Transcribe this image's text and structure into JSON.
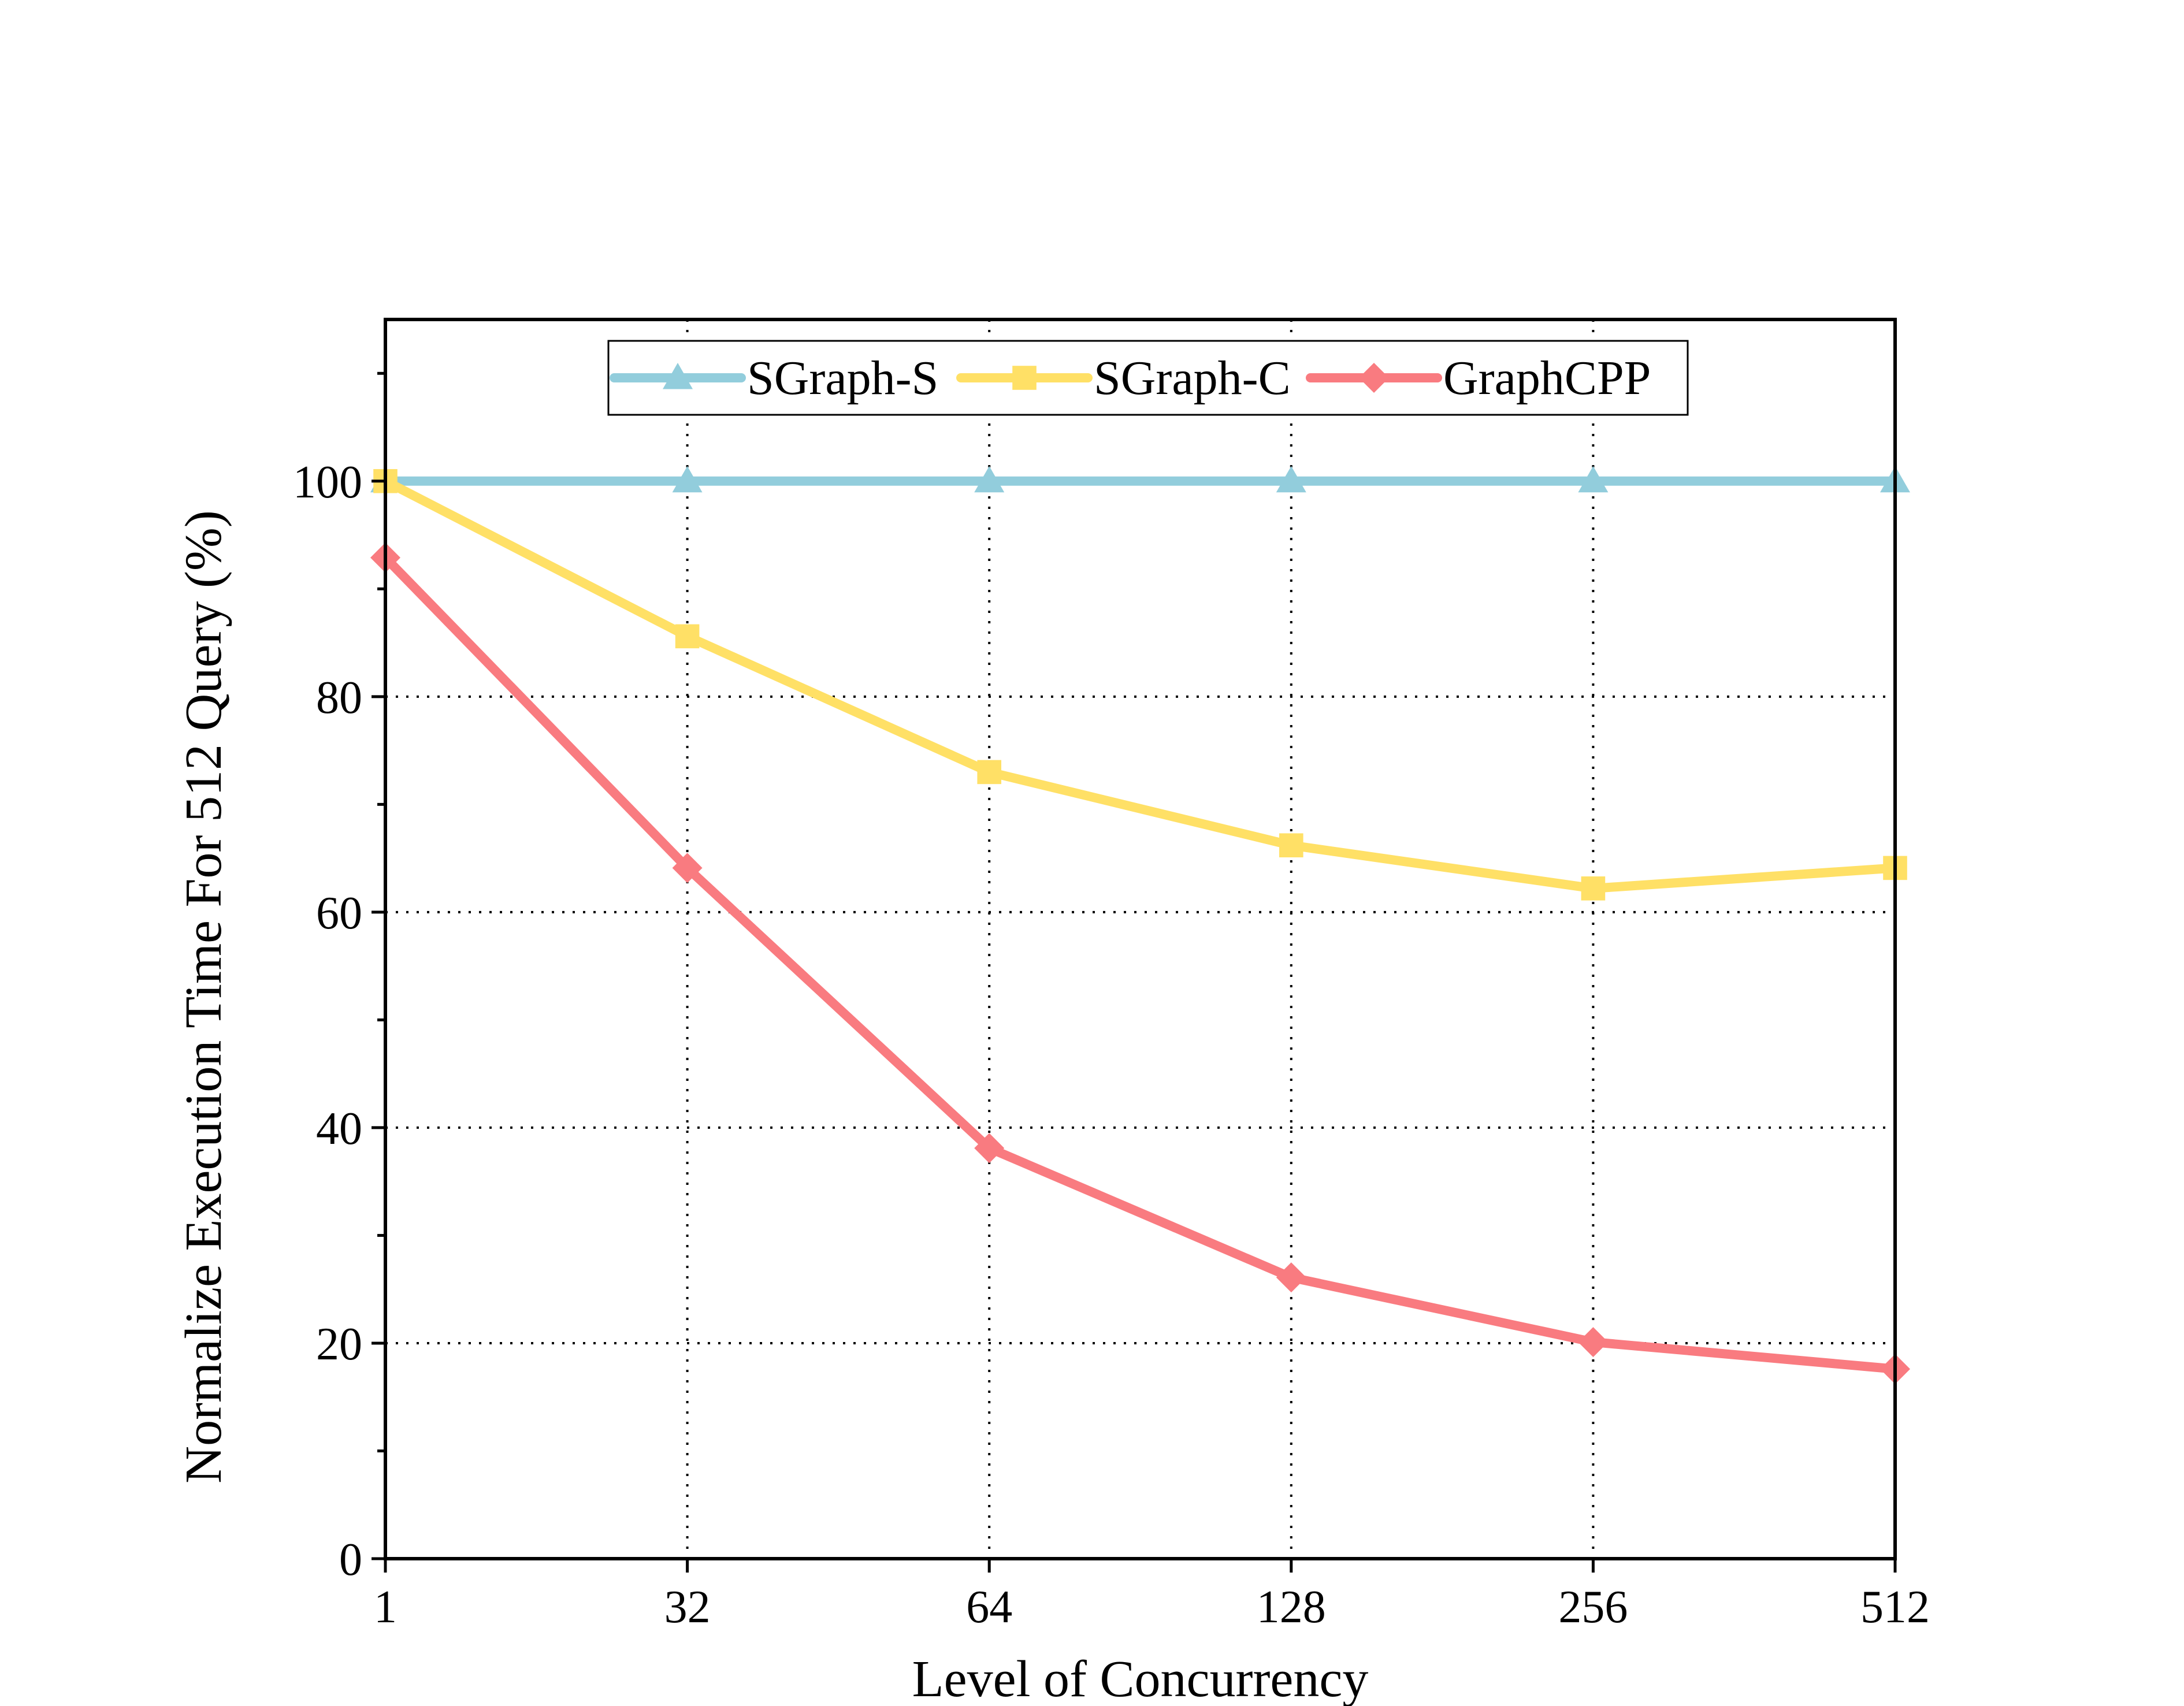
{
  "chart_data": {
    "type": "line",
    "title": "",
    "xlabel": "Level of Concurrency",
    "ylabel": "Normalize Execution Time For 512 Query (%)",
    "categories": [
      "1",
      "32",
      "64",
      "128",
      "256",
      "512"
    ],
    "ylim": [
      0,
      115
    ],
    "yticks": [
      0,
      20,
      40,
      60,
      80,
      100
    ],
    "grid": true,
    "legend_position": "top",
    "series": [
      {
        "name": "SGraph-S",
        "color": "#92cddc",
        "marker": "triangle",
        "values": [
          100,
          100,
          100,
          100,
          100,
          100
        ]
      },
      {
        "name": "SGraph-C",
        "color": "#ffe066",
        "marker": "square",
        "values": [
          100,
          85.6,
          73,
          66.2,
          62.2,
          64.1
        ]
      },
      {
        "name": "GraphCPP",
        "color": "#f97b80",
        "marker": "diamond",
        "values": [
          92.9,
          64.1,
          38.1,
          26.1,
          20.1,
          17.6
        ]
      }
    ]
  }
}
